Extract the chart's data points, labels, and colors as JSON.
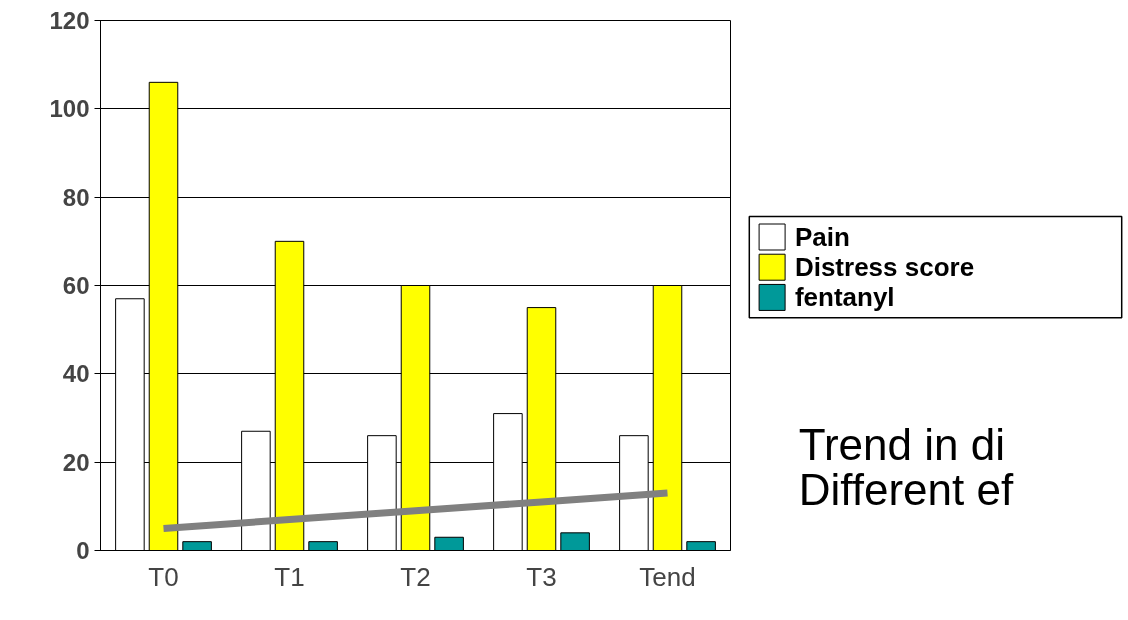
{
  "chart_data": {
    "type": "bar",
    "categories": [
      "T0",
      "T1",
      "T2",
      "T3",
      "Tend"
    ],
    "series": [
      {
        "name": "Pain",
        "color": "#ffffff",
        "values": [
          57,
          27,
          26,
          31,
          26
        ]
      },
      {
        "name": "Distress score",
        "color": "#ffff00",
        "values": [
          106,
          70,
          60,
          55,
          60
        ]
      },
      {
        "name": "fentanyl",
        "color": "#009999",
        "values": [
          2,
          2,
          3,
          4,
          2
        ]
      },
      {
        "type": "line",
        "color": "#808080",
        "values": [
          5,
          7,
          9,
          11,
          13
        ]
      }
    ],
    "ylim": [
      0,
      120
    ],
    "yticks": [
      0,
      20,
      40,
      60,
      80,
      100,
      120
    ],
    "grid": "y",
    "legend": "right",
    "annotations": [
      "Trend in di",
      "Different ef"
    ]
  }
}
